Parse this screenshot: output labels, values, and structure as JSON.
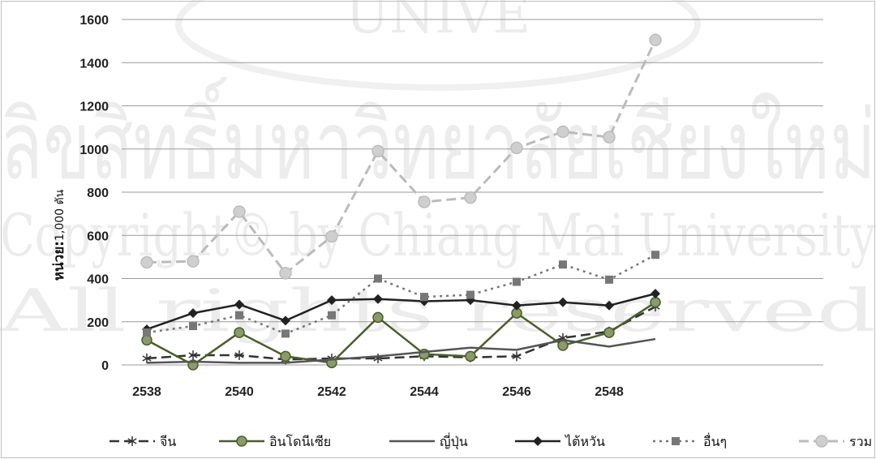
{
  "chart_data": {
    "type": "line",
    "title": "",
    "xlabel": "",
    "ylabel": "หน่วย:",
    "ylabel_unit": "1,000 ตัน",
    "x": [
      2538,
      2539,
      2540,
      2541,
      2542,
      2543,
      2544,
      2545,
      2546,
      2547,
      2548,
      2549
    ],
    "x_tick_labels": [
      "2538",
      "2540",
      "2542",
      "2544",
      "2546",
      "2548"
    ],
    "y_ticks": [
      0,
      200,
      400,
      600,
      800,
      1000,
      1200,
      1400,
      1600
    ],
    "ylim": [
      0,
      1600
    ],
    "grid": true,
    "legend_position": "bottom",
    "series": [
      {
        "name": "จีน",
        "color": "#333333",
        "style": "dashed",
        "marker": "star",
        "values": [
          30,
          45,
          45,
          25,
          30,
          30,
          40,
          35,
          40,
          125,
          155,
          270
        ]
      },
      {
        "name": "อินโดนีเซีย",
        "color": "#4a5e2a",
        "style": "solid",
        "marker": "circle",
        "values": [
          115,
          0,
          150,
          40,
          10,
          220,
          50,
          40,
          240,
          90,
          150,
          290
        ]
      },
      {
        "name": "ญี่ปุ่น",
        "color": "#555555",
        "style": "solid",
        "marker": "none",
        "values": [
          10,
          15,
          10,
          10,
          25,
          40,
          60,
          80,
          70,
          115,
          85,
          120
        ]
      },
      {
        "name": "ไต้หวัน",
        "color": "#222222",
        "style": "solid",
        "marker": "diamond",
        "values": [
          165,
          240,
          280,
          205,
          300,
          305,
          295,
          300,
          275,
          290,
          275,
          330
        ]
      },
      {
        "name": "อื่นๆ",
        "color": "#777777",
        "style": "dotted",
        "marker": "square",
        "values": [
          150,
          180,
          230,
          145,
          230,
          400,
          315,
          325,
          385,
          465,
          395,
          510
        ]
      },
      {
        "name": "รวม",
        "color": "#bbbbbb",
        "style": "dashed",
        "marker": "circle",
        "values": [
          475,
          480,
          710,
          425,
          595,
          990,
          755,
          775,
          1005,
          1080,
          1055,
          1505
        ]
      }
    ]
  },
  "watermark": {
    "top_text": "UNIVE",
    "line1": "ลิขสิทธิ์มหาวิทยาลัยเชียงใหม่",
    "line2": "Copyright© by Chiang Mai University",
    "line3": "All rights reserved"
  }
}
